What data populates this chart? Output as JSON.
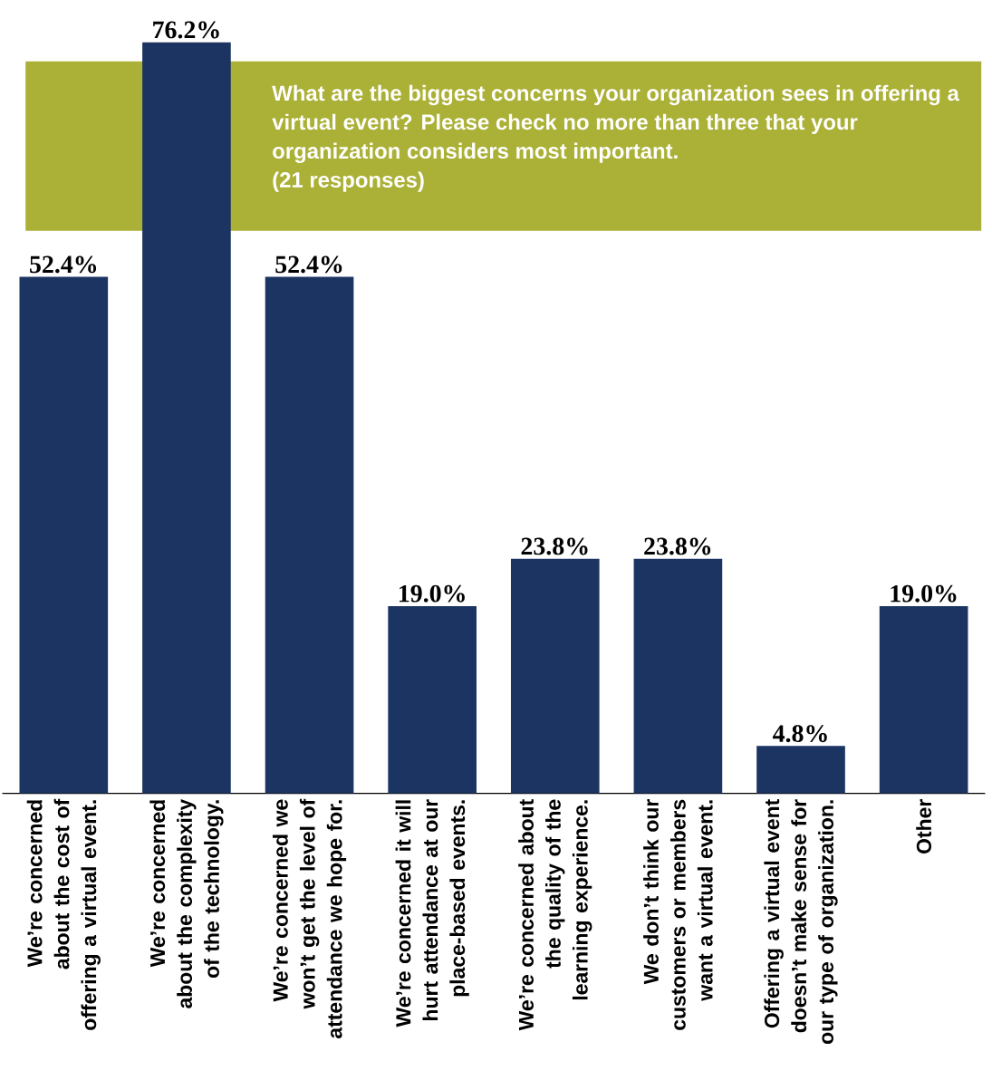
{
  "chart_data": {
    "type": "bar",
    "title": "What are the biggest concerns your organization sees in offering a virtual event? Please check no more than three that your organization considers most important.",
    "subtitle": "(21 responses)",
    "categories": [
      "We’re concerned about the cost of offering a virtual event.",
      "We’re concerned about the complexity of the technology.",
      "We’re concerned we won’t get the level of attendance we hope for.",
      "We’re concerned it will hurt attendance at our place-based events.",
      "We’re concerned about the quality of the learning experience.",
      "We don’t think our customers or members want a virtual event.",
      "Offering a virtual event doesn’t make sense for our type of organization.",
      "Other"
    ],
    "values": [
      52.4,
      76.2,
      52.4,
      19.0,
      23.8,
      23.8,
      4.8,
      19.0
    ],
    "value_labels": [
      "52.4%",
      "76.2%",
      "52.4%",
      "19.0%",
      "23.8%",
      "23.8%",
      "4.8%",
      "19.0%"
    ],
    "color": "#1b3461"
  }
}
